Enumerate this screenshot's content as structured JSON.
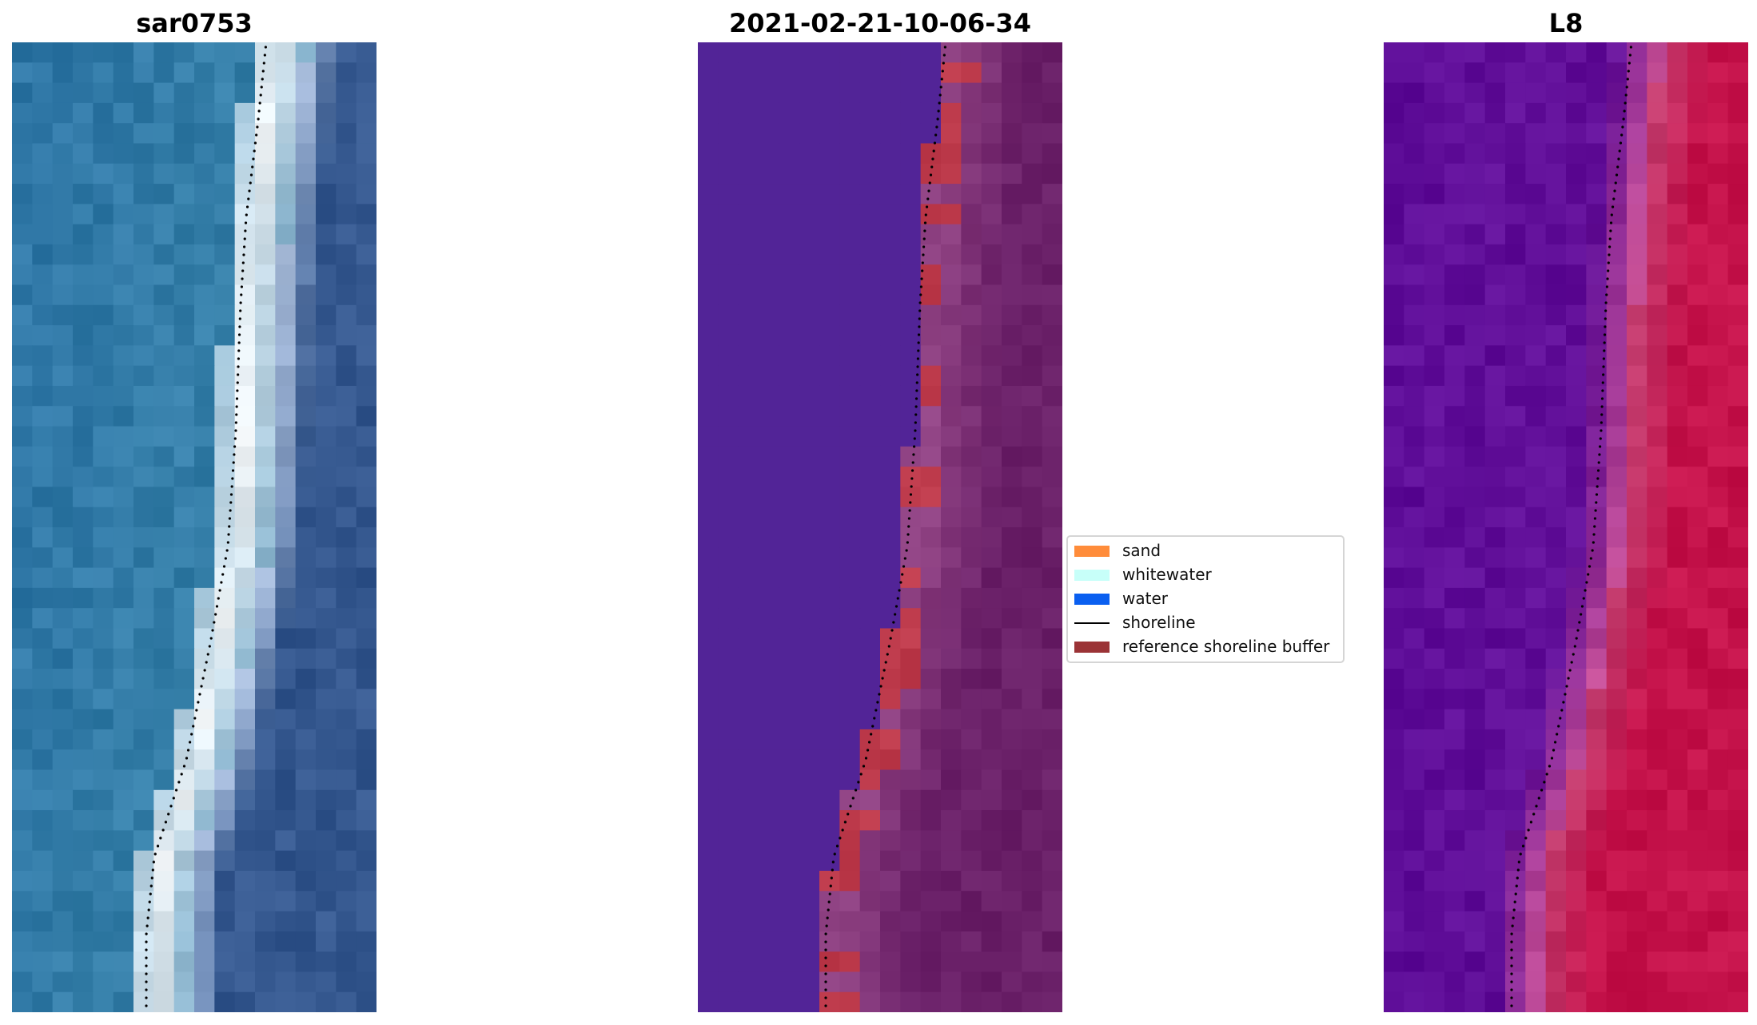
{
  "panels": [
    {
      "title": "sar0753",
      "kind": "rgb"
    },
    {
      "title": "2021-02-21-10-06-34",
      "kind": "classified"
    },
    {
      "title": "L8",
      "kind": "index"
    }
  ],
  "legend": {
    "items": [
      {
        "label": "sand",
        "type": "patch",
        "color": "#ff8c3a"
      },
      {
        "label": "whitewater",
        "type": "patch",
        "color": "#c7fff9"
      },
      {
        "label": "water",
        "type": "patch",
        "color": "#0a5ff0"
      },
      {
        "label": "shoreline",
        "type": "line",
        "color": "#000000"
      },
      {
        "label": "reference shoreline buffer",
        "type": "patch",
        "color": "#9b3336"
      }
    ]
  },
  "colors": {
    "rgb_ocean": "#2f77a6",
    "rgb_surf": "#f2f6f8",
    "rgb_land": "#34578e",
    "class_water": "#522497",
    "class_sand": "#bd3a4b",
    "class_land": "#6a2068",
    "index_water": "#5e0d98",
    "index_land": "#c4124a",
    "shoreline": "#000000"
  }
}
